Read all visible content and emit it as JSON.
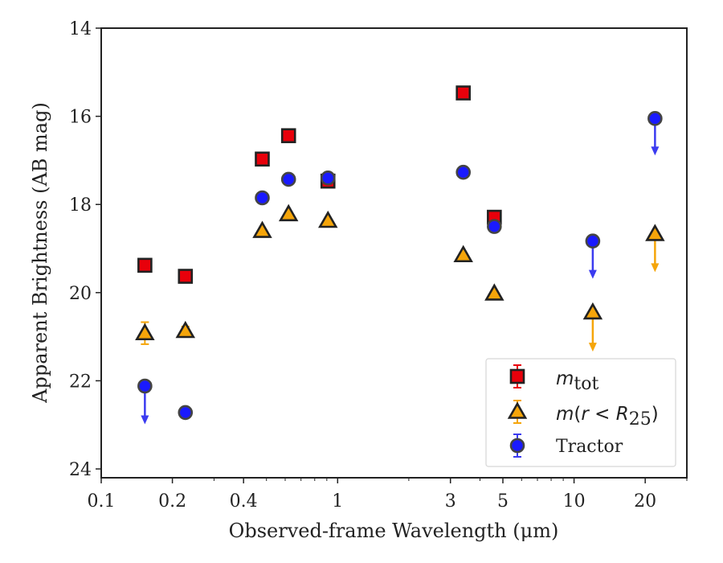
{
  "chart_data": {
    "type": "scatter",
    "xlabel": "Observed-frame Wavelength (μm)",
    "ylabel": "Apparent Brightness (AB mag)",
    "x_scale": "log",
    "xlim": [
      0.1,
      30
    ],
    "ylim": [
      24.2,
      14
    ],
    "y_inverted": true,
    "x_tick_labels": [
      {
        "value": 0.1,
        "label": "0.1"
      },
      {
        "value": 0.2,
        "label": "0.2"
      },
      {
        "value": 0.4,
        "label": "0.4"
      },
      {
        "value": 1,
        "label": "1"
      },
      {
        "value": 3,
        "label": "3"
      },
      {
        "value": 5,
        "label": "5"
      },
      {
        "value": 10,
        "label": "10"
      },
      {
        "value": 20,
        "label": "20"
      }
    ],
    "y_ticks": [
      14,
      16,
      18,
      20,
      22,
      24
    ],
    "grid": false,
    "legend_position": "bottom-right",
    "series": [
      {
        "name": "m_tot",
        "legend": {
          "symbol": "m",
          "sub": "tot"
        },
        "marker": "square",
        "color": "#e8000b",
        "errorbar_color": "#e8000b",
        "points": [
          {
            "x": 0.153,
            "y": 19.38,
            "err": 0.12
          },
          {
            "x": 0.227,
            "y": 19.63,
            "err": 0.08
          },
          {
            "x": 0.48,
            "y": 16.97,
            "err": 0.05
          },
          {
            "x": 0.62,
            "y": 16.44,
            "err": 0.05
          },
          {
            "x": 0.91,
            "y": 17.47,
            "err": 0.05
          },
          {
            "x": 3.4,
            "y": 15.47,
            "err": 0.05
          },
          {
            "x": 4.6,
            "y": 18.29,
            "err": 0.05
          }
        ]
      },
      {
        "name": "m(r < R25)",
        "legend": {
          "prefix": "m",
          "paren_open": "(",
          "r": "r",
          "lt": " < ",
          "R": "R",
          "sub": "25",
          "paren_close": ")"
        },
        "marker": "triangle",
        "color": "#f5a50a",
        "errorbar_color": "#f5a50a",
        "points": [
          {
            "x": 0.153,
            "y": 20.92,
            "err": 0.25
          },
          {
            "x": 0.227,
            "y": 20.87,
            "err": 0.1
          },
          {
            "x": 0.48,
            "y": 18.6,
            "err": 0.05
          },
          {
            "x": 0.62,
            "y": 18.22,
            "err": 0.05
          },
          {
            "x": 0.91,
            "y": 18.37,
            "err": 0.05
          },
          {
            "x": 3.4,
            "y": 19.15,
            "err": 0.05
          },
          {
            "x": 4.6,
            "y": 20.02,
            "err": 0.05
          },
          {
            "x": 12.0,
            "y": 20.45,
            "upper_limit": true,
            "arrow_to": 21.3
          },
          {
            "x": 22.0,
            "y": 18.67,
            "upper_limit": true,
            "arrow_to": 19.5
          }
        ]
      },
      {
        "name": "Tractor",
        "legend": {
          "text": "Tractor"
        },
        "marker": "circle",
        "color": "#1a1aff",
        "errorbar_color": "#3b3bf0",
        "points": [
          {
            "x": 0.153,
            "y": 22.12,
            "upper_limit": true,
            "arrow_to": 22.95
          },
          {
            "x": 0.227,
            "y": 22.72,
            "err": 0.05
          },
          {
            "x": 0.48,
            "y": 17.85,
            "err": 0.05
          },
          {
            "x": 0.62,
            "y": 17.43,
            "err": 0.05
          },
          {
            "x": 0.91,
            "y": 17.4,
            "err": 0.05
          },
          {
            "x": 3.4,
            "y": 17.27,
            "err": 0.05
          },
          {
            "x": 4.6,
            "y": 18.5,
            "err": 0.05
          },
          {
            "x": 12.0,
            "y": 18.83,
            "upper_limit": true,
            "arrow_to": 19.65
          },
          {
            "x": 22.0,
            "y": 16.05,
            "upper_limit": true,
            "arrow_to": 16.85
          }
        ]
      }
    ]
  }
}
